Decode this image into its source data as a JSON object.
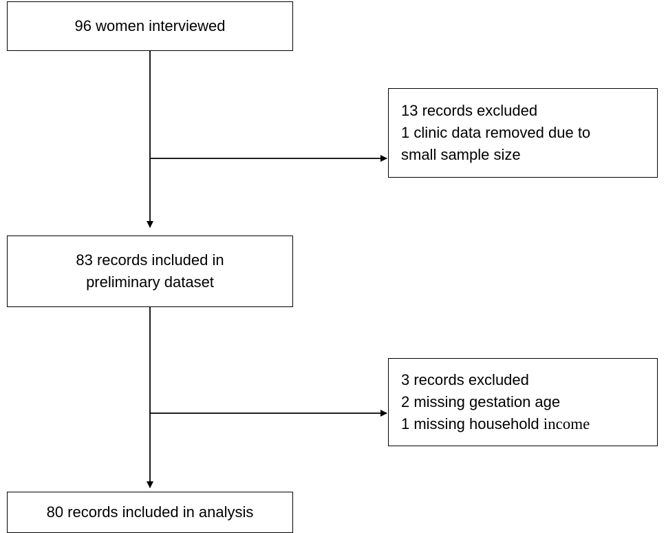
{
  "flowchart": {
    "box_start": {
      "lines": [
        "96 women interviewed"
      ]
    },
    "box_exclusion_1": {
      "lines": [
        "13 records excluded",
        "1 clinic data removed due to",
        "small sample size"
      ]
    },
    "box_preliminary": {
      "lines": [
        "83 records included in",
        "preliminary dataset"
      ]
    },
    "box_exclusion_2": {
      "lines": [
        "3 records excluded",
        "2 missing gestation age",
        "1 missing household "
      ],
      "line3_tail": "income"
    },
    "box_final": {
      "lines": [
        "80 records included in analysis"
      ]
    }
  }
}
